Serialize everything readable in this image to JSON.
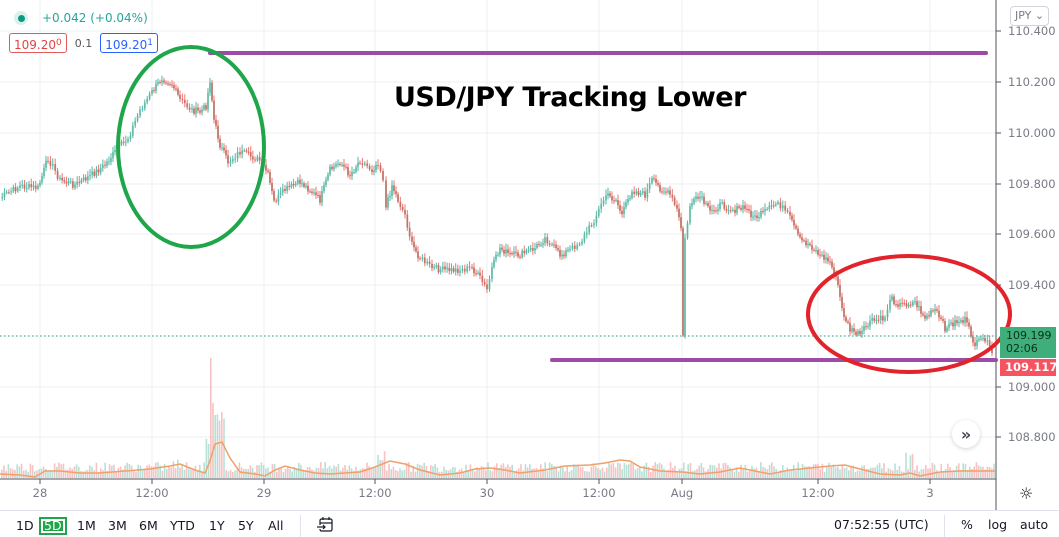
{
  "symbol_legend": {
    "change": "+0.042 (+0.04%)",
    "bid": "109.20",
    "bid_sup": "0",
    "spread": "0.1",
    "ask": "109.20",
    "ask_sup": "1"
  },
  "currency_button": "JPY ⌄",
  "price_axis": {
    "ticks": [
      "110.400",
      "110.200",
      "110.000",
      "109.800",
      "109.600",
      "109.400",
      "109.000",
      "108.800"
    ],
    "last_price": "109.199",
    "countdown": "02:06",
    "marker_price": "109.117"
  },
  "time_axis": {
    "ticks": [
      "28",
      "12:00",
      "29",
      "12:00",
      "30",
      "12:00",
      "Aug",
      "12:00",
      "3"
    ]
  },
  "annotation": {
    "title": "USD/JPY Tracking Lower",
    "resistance_line_color": "#9c4ba6",
    "support_line_color": "#9c4ba6",
    "high_circle_color": "#1fa64a",
    "low_circle_color": "#e3232b"
  },
  "bottom_toolbar": {
    "ranges": [
      "1D",
      "5D",
      "1M",
      "3M",
      "6M",
      "YTD",
      "1Y",
      "5Y",
      "All"
    ],
    "active_range": "5D",
    "clock": "07:52:55 (UTC)",
    "percent": "%",
    "log": "log",
    "auto": "auto"
  },
  "icons": {
    "scroll_right": "»",
    "settings": "☼"
  },
  "chart_data": {
    "type": "candlestick",
    "title": "USD/JPY Tracking Lower",
    "symbol": "USD/JPY",
    "timeframe_range": "5D",
    "ylabel": "JPY",
    "ylim": [
      108.72,
      110.44
    ],
    "y_ticks": [
      108.8,
      109.0,
      109.4,
      109.6,
      109.8,
      110.0,
      110.2,
      110.4
    ],
    "x_ticks": [
      "28",
      "12:00",
      "29",
      "12:00",
      "30",
      "12:00",
      "Aug",
      "12:00",
      "3"
    ],
    "grid": true,
    "approx_close_path": {
      "x_labels_note": "approximate price trace left-to-right across Jul 28 – Aug 3",
      "points": [
        {
          "t": "Jul 28 00:00",
          "price": 109.78
        },
        {
          "t": "Jul 28 04:00",
          "price": 109.92
        },
        {
          "t": "Jul 28 08:00",
          "price": 109.88
        },
        {
          "t": "Jul 28 12:00",
          "price": 110.02
        },
        {
          "t": "Jul 28 15:00",
          "price": 110.2
        },
        {
          "t": "Jul 28 18:00",
          "price": 110.12
        },
        {
          "t": "Jul 28 20:00",
          "price": 110.3
        },
        {
          "t": "Jul 28 21:00",
          "price": 109.98
        },
        {
          "t": "Jul 29 00:00",
          "price": 109.93
        },
        {
          "t": "Jul 29 02:00",
          "price": 109.72
        },
        {
          "t": "Jul 29 08:00",
          "price": 109.85
        },
        {
          "t": "Jul 29 14:00",
          "price": 109.88
        },
        {
          "t": "Jul 29 18:00",
          "price": 109.9
        },
        {
          "t": "Jul 29 20:00",
          "price": 109.62
        },
        {
          "t": "Jul 29 22:00",
          "price": 109.5
        },
        {
          "t": "Jul 30 00:00",
          "price": 109.45
        },
        {
          "t": "Jul 30 02:00",
          "price": 109.38
        },
        {
          "t": "Jul 30 06:00",
          "price": 109.55
        },
        {
          "t": "Jul 30 10:00",
          "price": 109.58
        },
        {
          "t": "Jul 30 14:00",
          "price": 109.5
        },
        {
          "t": "Jul 30 18:00",
          "price": 109.7
        },
        {
          "t": "Jul 30 20:00",
          "price": 109.8
        },
        {
          "t": "Jul 31 00:00",
          "price": 109.82
        },
        {
          "t": "Aug 1 00:00",
          "price": 109.72
        },
        {
          "t": "Aug 2 00:00",
          "price": 109.2
        },
        {
          "t": "Aug 2 00:10",
          "price": 109.75
        },
        {
          "t": "Aug 2 06:00",
          "price": 109.74
        },
        {
          "t": "Aug 2 10:00",
          "price": 109.6
        },
        {
          "t": "Aug 2 13:00",
          "price": 109.45
        },
        {
          "t": "Aug 2 14:00",
          "price": 109.22
        },
        {
          "t": "Aug 2 18:00",
          "price": 109.28
        },
        {
          "t": "Aug 2 20:00",
          "price": 109.36
        },
        {
          "t": "Aug 2 23:00",
          "price": 109.3
        },
        {
          "t": "Aug 3 02:00",
          "price": 109.25
        },
        {
          "t": "Aug 3 06:00",
          "price": 109.15
        },
        {
          "t": "Aug 3 07:52",
          "price": 109.199
        }
      ]
    },
    "last_price": 109.199,
    "horizontal_lines": [
      {
        "label": "resistance",
        "price": 110.3,
        "from": "Jul 28 20:00",
        "to": "Aug 3",
        "color": "#9c4ba6"
      },
      {
        "label": "support",
        "price": 109.09,
        "from": "Jul 30 08:00",
        "to": "Aug 3",
        "color": "#9c4ba6"
      }
    ],
    "annotations": [
      {
        "shape": "ellipse",
        "color": "#1fa64a",
        "around": "Jul 28 12:00–Jul 29 00:00 highs"
      },
      {
        "shape": "ellipse",
        "color": "#e3232b",
        "around": "Aug 2 14:00–Aug 3 lows"
      }
    ],
    "volume_pane": true
  }
}
